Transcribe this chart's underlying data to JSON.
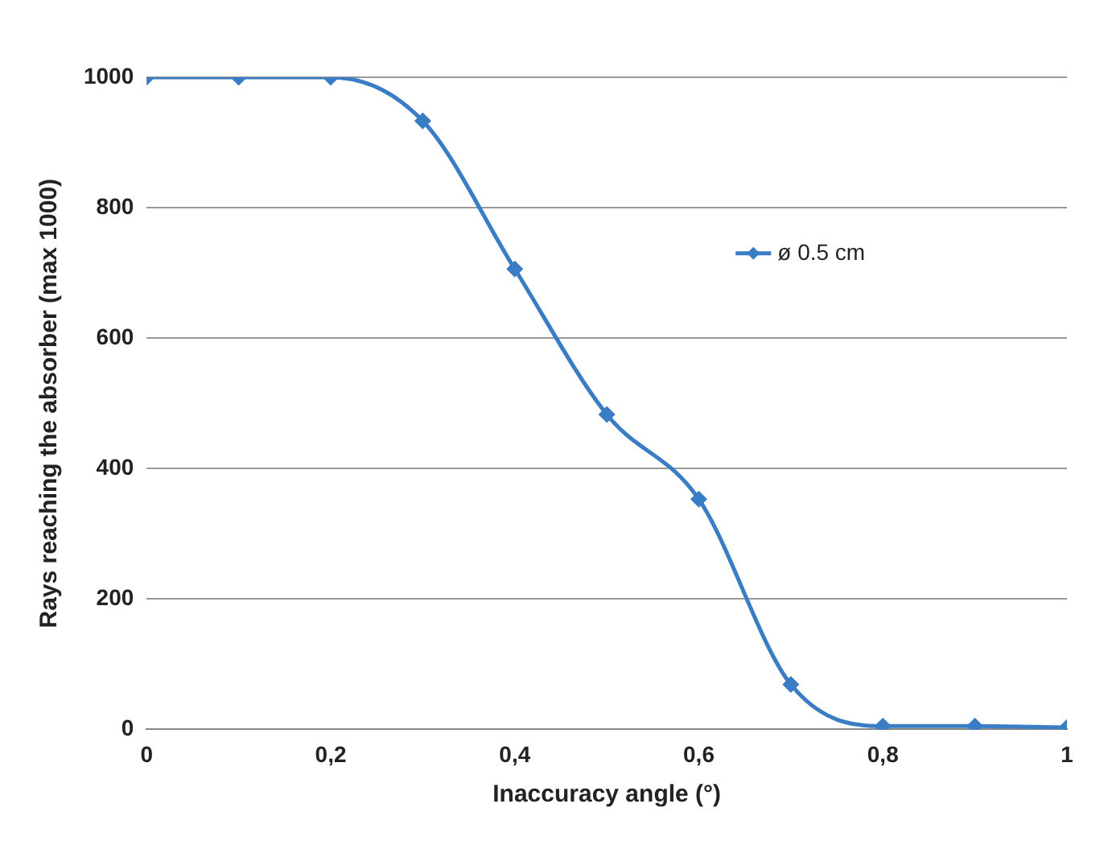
{
  "chart_data": {
    "type": "line",
    "xlabel": "Inaccuracy angle (°)",
    "ylabel": "Rays reaching the absorber (max 1000)",
    "x": [
      0,
      0.1,
      0.2,
      0.3,
      0.4,
      0.5,
      0.6,
      0.7,
      0.8,
      0.9,
      1
    ],
    "series": [
      {
        "name": "ø 0.5 cm",
        "color": "#3b7dc4",
        "values": [
          1000,
          1000,
          1000,
          933,
          706,
          483,
          353,
          69,
          5,
          5,
          3
        ]
      }
    ],
    "xlim": [
      0,
      1
    ],
    "xticks": [
      {
        "value": 0,
        "label": "0"
      },
      {
        "value": 0.2,
        "label": "0,2"
      },
      {
        "value": 0.4,
        "label": "0,4"
      },
      {
        "value": 0.6,
        "label": "0,6"
      },
      {
        "value": 0.8,
        "label": "0,8"
      },
      {
        "value": 1,
        "label": "1"
      }
    ],
    "ylim": [
      0,
      1000
    ],
    "yticks": [
      0,
      200,
      400,
      600,
      800,
      1000
    ],
    "grid": "y",
    "legend": "right",
    "marker": "diamond",
    "line_style": "solid"
  }
}
